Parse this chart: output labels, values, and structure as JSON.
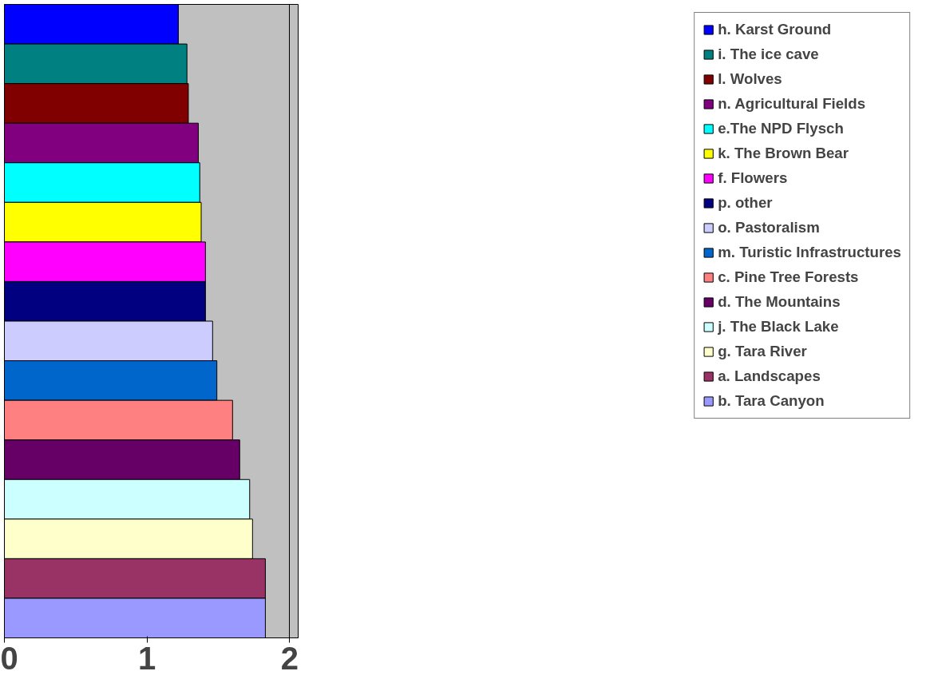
{
  "chart_data": {
    "type": "bar",
    "orientation": "horizontal",
    "categories": [
      null
    ],
    "xlim": [
      0,
      2.06
    ],
    "xticks": [
      0,
      1,
      2
    ],
    "grid": "x",
    "legend": "right",
    "tick_labels": "x",
    "series": [
      {
        "name": "h. Karst Ground",
        "color": "#0000ff",
        "values": [
          1.22
        ]
      },
      {
        "name": "i. The ice cave",
        "color": "#008080",
        "values": [
          1.28
        ]
      },
      {
        "name": "l. Wolves",
        "color": "#800000",
        "values": [
          1.29
        ]
      },
      {
        "name": "n. Agricultural Fields",
        "color": "#800080",
        "values": [
          1.36
        ]
      },
      {
        "name": "e.The NPD Flysch",
        "color": "#00ffff",
        "values": [
          1.37
        ]
      },
      {
        "name": "k. The Brown Bear",
        "color": "#ffff00",
        "values": [
          1.38
        ]
      },
      {
        "name": "f. Flowers",
        "color": "#ff00ff",
        "values": [
          1.41
        ]
      },
      {
        "name": "p. other",
        "color": "#000080",
        "values": [
          1.41
        ]
      },
      {
        "name": "o. Pastoralism",
        "color": "#ccccff",
        "values": [
          1.46
        ]
      },
      {
        "name": "m. Turistic Infrastructures",
        "color": "#0066cc",
        "values": [
          1.49
        ]
      },
      {
        "name": "c. Pine Tree Forests",
        "color": "#ff8080",
        "values": [
          1.6
        ]
      },
      {
        "name": "d. The Mountains",
        "color": "#660066",
        "values": [
          1.65
        ]
      },
      {
        "name": "j. The Black Lake",
        "color": "#ccffff",
        "values": [
          1.72
        ]
      },
      {
        "name": "g. Tara River",
        "color": "#ffffcc",
        "values": [
          1.74
        ]
      },
      {
        "name": "a. Landscapes",
        "color": "#993366",
        "values": [
          1.83
        ]
      },
      {
        "name": "b. Tara Canyon",
        "color": "#9999ff",
        "values": [
          1.83
        ]
      }
    ]
  }
}
